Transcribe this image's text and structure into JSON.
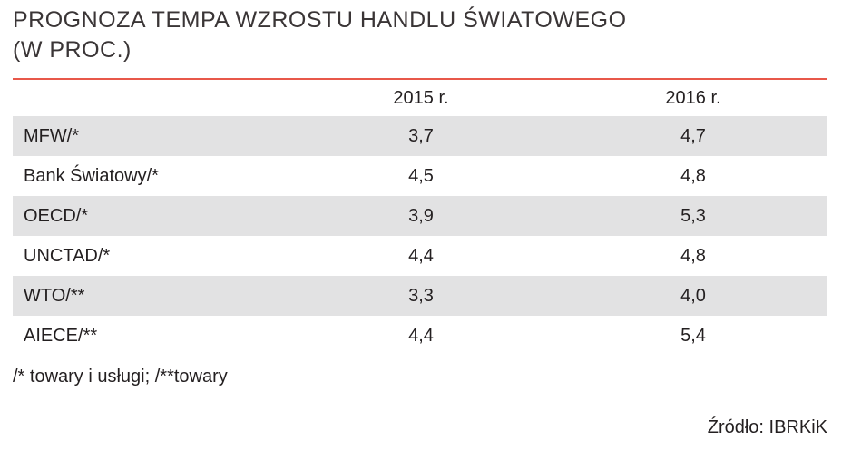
{
  "title": {
    "line1": "PROGNOZA TEMPA WZROSTU HANDLU ŚWIATOWEGO",
    "line2": "(W PROC.)"
  },
  "colors": {
    "rule": "#e8584a",
    "row_shade": "#e2e2e3",
    "text": "#231f20"
  },
  "table": {
    "headers": [
      "",
      "2015 r.",
      "2016 r."
    ],
    "rows": [
      {
        "label": "MFW/*",
        "v2015": "3,7",
        "v2016": "4,7"
      },
      {
        "label": "Bank Światowy/*",
        "v2015": "4,5",
        "v2016": "4,8"
      },
      {
        "label": "OECD/*",
        "v2015": "3,9",
        "v2016": "5,3"
      },
      {
        "label": "UNCTAD/*",
        "v2015": "4,4",
        "v2016": "4,8"
      },
      {
        "label": "WTO/**",
        "v2015": "3,3",
        "v2016": "4,0"
      },
      {
        "label": "AIECE/**",
        "v2015": "4,4",
        "v2016": "5,4"
      }
    ]
  },
  "footnote": "/* towary i usługi; /**towary",
  "source": "Źródło: IBRKiK"
}
